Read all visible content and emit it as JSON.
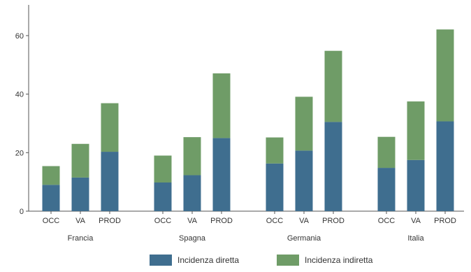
{
  "chart_data": {
    "type": "bar",
    "stacked": true,
    "groups": [
      {
        "name": "Francia",
        "categories": [
          "OCC",
          "VA",
          "PROD"
        ]
      },
      {
        "name": "Spagna",
        "categories": [
          "OCC",
          "VA",
          "PROD"
        ]
      },
      {
        "name": "Germania",
        "categories": [
          "OCC",
          "VA",
          "PROD"
        ]
      },
      {
        "name": "Italia",
        "categories": [
          "OCC",
          "VA",
          "PROD"
        ]
      }
    ],
    "categories": [
      "OCC",
      "VA",
      "PROD",
      "OCC",
      "VA",
      "PROD",
      "OCC",
      "VA",
      "PROD",
      "OCC",
      "VA",
      "PROD"
    ],
    "series": [
      {
        "name": "Incidenza diretta",
        "color": "#3f6e8f",
        "values": [
          9,
          11.5,
          20.3,
          9.8,
          12.3,
          25,
          16.3,
          20.7,
          30.5,
          14.8,
          17.5,
          30.7
        ]
      },
      {
        "name": "Incidenza indiretta",
        "color": "#6f9c67",
        "values": [
          6.4,
          11.5,
          16.6,
          9.2,
          13,
          22.1,
          8.9,
          18.4,
          24.3,
          10.6,
          20,
          31.4
        ]
      }
    ],
    "totals": [
      15.4,
      23,
      36.9,
      19,
      25.3,
      47.1,
      25.2,
      39.1,
      54.8,
      25.4,
      37.5,
      62.1
    ],
    "ylim": [
      0,
      65
    ],
    "yticks": [
      "0",
      "20",
      "40",
      "60"
    ],
    "xlabel": "",
    "ylabel": "",
    "grid": false,
    "legend_position": "bottom"
  }
}
